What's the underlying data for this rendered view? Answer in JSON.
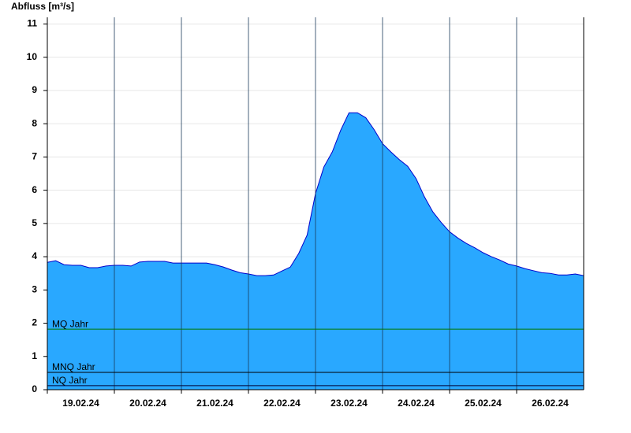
{
  "chart_data": {
    "type": "area",
    "ylabel": "Abfluss [m³/s]",
    "color": "#29a8ff",
    "line_color": "#0000cc",
    "grid": true,
    "ylim": [
      0,
      11.2
    ],
    "yticks": [
      0,
      1,
      2,
      3,
      4,
      5,
      6,
      7,
      8,
      9,
      10,
      11
    ],
    "xlim": [
      "2024-02-19T00:00",
      "2024-02-27T00:00"
    ],
    "xticks": [
      {
        "value": "2024-02-19T00:00",
        "label": "19.02.24"
      },
      {
        "value": "2024-02-20T00:00",
        "label": "20.02.24"
      },
      {
        "value": "2024-02-21T00:00",
        "label": "21.02.24"
      },
      {
        "value": "2024-02-22T00:00",
        "label": "22.02.24"
      },
      {
        "value": "2024-02-23T00:00",
        "label": "23.02.24"
      },
      {
        "value": "2024-02-24T00:00",
        "label": "24.02.24"
      },
      {
        "value": "2024-02-25T00:00",
        "label": "25.02.24"
      },
      {
        "value": "2024-02-26T00:00",
        "label": "26.02.24"
      }
    ],
    "x": [
      "2024-02-19T00:00",
      "2024-02-19T03:00",
      "2024-02-19T06:00",
      "2024-02-19T09:00",
      "2024-02-19T12:00",
      "2024-02-19T15:00",
      "2024-02-19T18:00",
      "2024-02-19T21:00",
      "2024-02-20T00:00",
      "2024-02-20T03:00",
      "2024-02-20T06:00",
      "2024-02-20T09:00",
      "2024-02-20T12:00",
      "2024-02-20T15:00",
      "2024-02-20T18:00",
      "2024-02-20T21:00",
      "2024-02-21T00:00",
      "2024-02-21T03:00",
      "2024-02-21T06:00",
      "2024-02-21T09:00",
      "2024-02-21T12:00",
      "2024-02-21T15:00",
      "2024-02-21T18:00",
      "2024-02-21T21:00",
      "2024-02-22T00:00",
      "2024-02-22T03:00",
      "2024-02-22T06:00",
      "2024-02-22T09:00",
      "2024-02-22T12:00",
      "2024-02-22T15:00",
      "2024-02-22T18:00",
      "2024-02-22T21:00",
      "2024-02-23T00:00",
      "2024-02-23T03:00",
      "2024-02-23T06:00",
      "2024-02-23T09:00",
      "2024-02-23T12:00",
      "2024-02-23T15:00",
      "2024-02-23T18:00",
      "2024-02-23T21:00",
      "2024-02-24T00:00",
      "2024-02-24T03:00",
      "2024-02-24T06:00",
      "2024-02-24T09:00",
      "2024-02-24T12:00",
      "2024-02-24T15:00",
      "2024-02-24T18:00",
      "2024-02-24T21:00",
      "2024-02-25T00:00",
      "2024-02-25T03:00",
      "2024-02-25T06:00",
      "2024-02-25T09:00",
      "2024-02-25T12:00",
      "2024-02-25T15:00",
      "2024-02-25T18:00",
      "2024-02-25T21:00",
      "2024-02-26T00:00",
      "2024-02-26T03:00",
      "2024-02-26T06:00",
      "2024-02-26T09:00",
      "2024-02-26T12:00",
      "2024-02-26T15:00",
      "2024-02-26T18:00",
      "2024-02-26T21:00",
      "2024-02-27T00:00"
    ],
    "values": [
      3.83,
      3.88,
      3.76,
      3.74,
      3.74,
      3.67,
      3.67,
      3.72,
      3.74,
      3.74,
      3.72,
      3.84,
      3.86,
      3.86,
      3.86,
      3.81,
      3.81,
      3.81,
      3.81,
      3.81,
      3.76,
      3.69,
      3.6,
      3.52,
      3.48,
      3.43,
      3.43,
      3.45,
      3.57,
      3.69,
      4.1,
      4.65,
      5.9,
      6.7,
      7.15,
      7.8,
      8.33,
      8.33,
      8.18,
      7.82,
      7.4,
      7.15,
      6.92,
      6.72,
      6.35,
      5.8,
      5.35,
      5.03,
      4.75,
      4.56,
      4.4,
      4.27,
      4.12,
      4.0,
      3.9,
      3.78,
      3.72,
      3.64,
      3.58,
      3.52,
      3.5,
      3.45,
      3.45,
      3.48,
      3.43
    ],
    "reference_lines": [
      {
        "label": "MQ Jahr",
        "value": 1.82,
        "color": "#007a00"
      },
      {
        "label": "MNQ Jahr",
        "value": 0.52,
        "color": "#000000"
      },
      {
        "label": "NQ Jahr",
        "value": 0.12,
        "color": "#000033"
      }
    ]
  }
}
